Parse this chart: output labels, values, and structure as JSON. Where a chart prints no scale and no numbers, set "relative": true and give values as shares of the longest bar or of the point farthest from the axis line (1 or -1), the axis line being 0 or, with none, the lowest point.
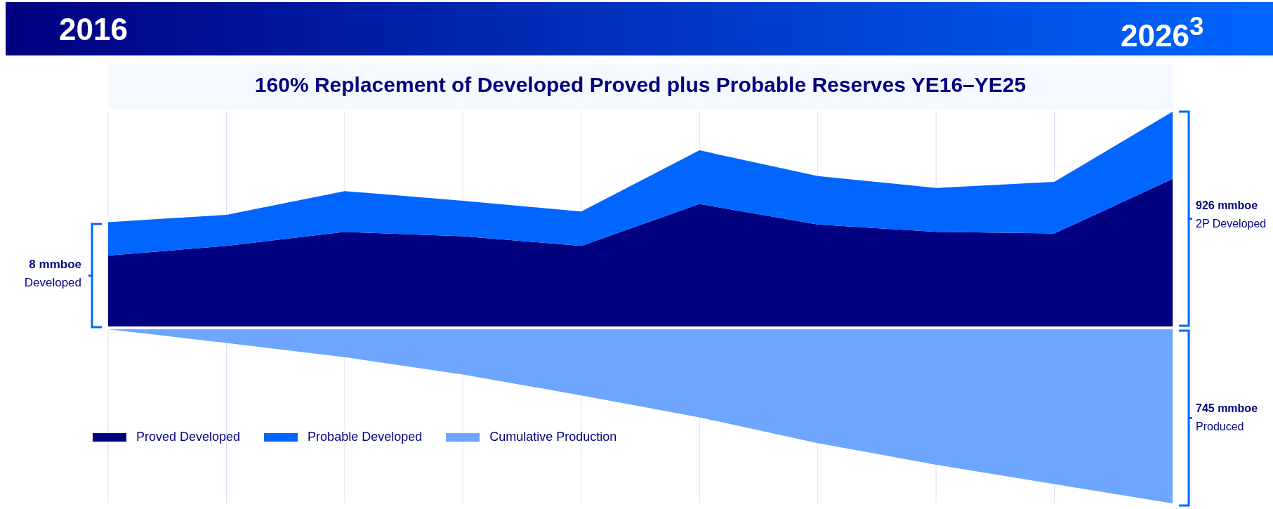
{
  "chart_data": [
    {
      "type": "area",
      "title": "160% Replacement of Developed Proved plus Probable Reserves YE16–YE25",
      "categories": [
        null,
        null,
        null,
        null,
        null,
        null,
        null,
        null,
        null,
        null
      ],
      "relative": true,
      "stacked": true,
      "grid": "x",
      "legend": "bottom",
      "series": [
        {
          "name": "Proved Developed",
          "color": "#000080",
          "values": [
            0.33,
            0.375,
            0.44,
            0.42,
            0.375,
            0.57,
            0.475,
            0.44,
            0.433,
            0.687
          ]
        },
        {
          "name": "Probable Developed",
          "color": "#0066ff",
          "values": [
            0.155,
            0.145,
            0.19,
            0.165,
            0.16,
            0.25,
            0.225,
            0.205,
            0.24,
            0.313
          ]
        }
      ],
      "annotations": [
        "2016",
        "2026$^{3}$",
        "8 mmboe",
        "Developed",
        "926 mmboe",
        "2P Developed"
      ]
    },
    {
      "type": "area",
      "categories": [
        null,
        null,
        null,
        null,
        null,
        null,
        null,
        null,
        null,
        null
      ],
      "relative": true,
      "grid": "x",
      "legend": "bottom left",
      "series": [
        {
          "name": "Cumulative Production",
          "color": "#6ea6ff",
          "values": [
            0,
            -0.079,
            -0.16,
            -0.26,
            -0.38,
            -0.506,
            -0.654,
            -0.778,
            -0.889,
            -1
          ]
        }
      ],
      "annotations": [
        "745 mmboe",
        "Produced"
      ]
    }
  ]
}
